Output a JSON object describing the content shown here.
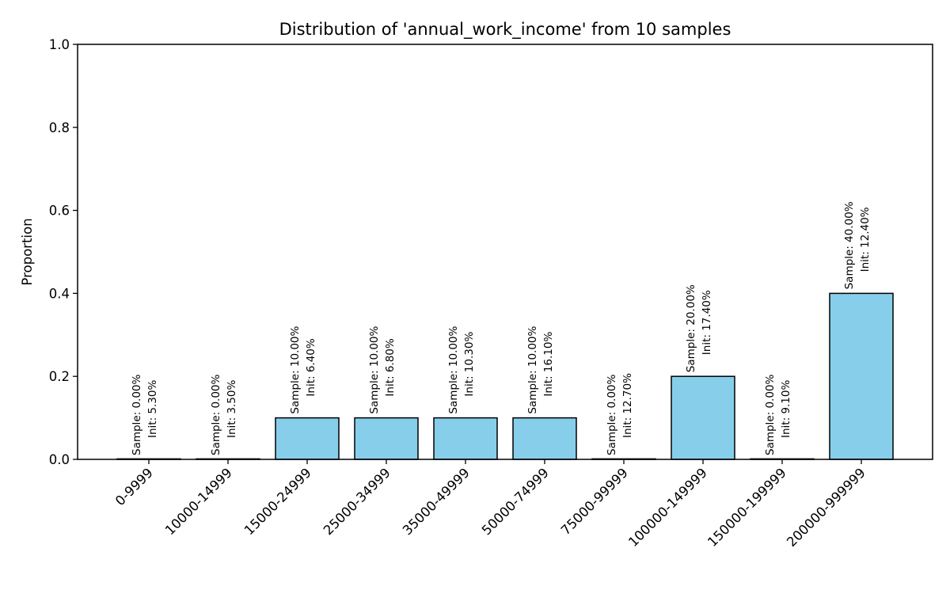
{
  "chart_data": {
    "type": "bar",
    "title": "Distribution of 'annual_work_income' from 10 samples",
    "xlabel": "",
    "ylabel": "Proportion",
    "ylim": [
      0,
      1.0
    ],
    "yticks": [
      "0.0",
      "0.2",
      "0.4",
      "0.6",
      "0.8",
      "1.0"
    ],
    "ytick_values": [
      0,
      0.2,
      0.4,
      0.6,
      0.8,
      1.0
    ],
    "grid": false,
    "bar_color": "#87CEEB",
    "edge_color": "#000000",
    "categories": [
      "0-9999",
      "10000-14999",
      "15000-24999",
      "25000-34999",
      "35000-49999",
      "50000-74999",
      "75000-99999",
      "100000-149999",
      "150000-199999",
      "200000-999999"
    ],
    "values": [
      0.0,
      0.0,
      0.1,
      0.1,
      0.1,
      0.1,
      0.0,
      0.2,
      0.0,
      0.4
    ],
    "init_values": [
      0.053,
      0.035,
      0.064,
      0.068,
      0.103,
      0.161,
      0.127,
      0.174,
      0.091,
      0.124
    ],
    "annotations": [
      [
        "Sample: 0.00%",
        "Init: 5.30%"
      ],
      [
        "Sample: 0.00%",
        "Init: 3.50%"
      ],
      [
        "Sample: 10.00%",
        "Init: 6.40%"
      ],
      [
        "Sample: 10.00%",
        "Init: 6.80%"
      ],
      [
        "Sample: 10.00%",
        "Init: 10.30%"
      ],
      [
        "Sample: 10.00%",
        "Init: 16.10%"
      ],
      [
        "Sample: 0.00%",
        "Init: 12.70%"
      ],
      [
        "Sample: 20.00%",
        "Init: 17.40%"
      ],
      [
        "Sample: 0.00%",
        "Init: 9.10%"
      ],
      [
        "Sample: 40.00%",
        "Init: 12.40%"
      ]
    ]
  }
}
